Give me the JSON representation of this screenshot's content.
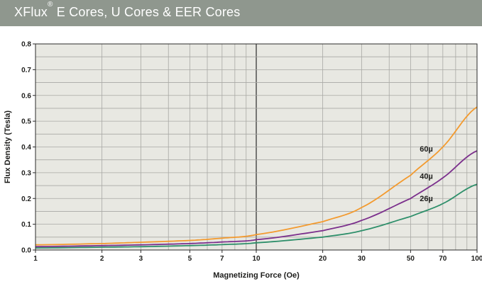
{
  "header": {
    "title_prefix": "XFlux",
    "title_mark": "®",
    "title_suffix": " E Cores, U Cores & EER Cores",
    "background": "#8f978e"
  },
  "chart_data": {
    "type": "line",
    "title": "XFlux® E Cores, U Cores & EER Cores",
    "xlabel": "Magnetizing Force (Oe)",
    "ylabel": "Flux Density (Tesla)",
    "x_scale": "log",
    "xlim": [
      1,
      100
    ],
    "ylim": [
      0,
      0.8
    ],
    "x_ticks": [
      1,
      2,
      3,
      5,
      7,
      10,
      20,
      30,
      50,
      70,
      100
    ],
    "x_tick_labels": [
      "1",
      "2",
      "3",
      "5",
      "7",
      "10",
      "20",
      "30",
      "50",
      "70",
      "100"
    ],
    "y_ticks": [
      0,
      0.1,
      0.2,
      0.3,
      0.4,
      0.5,
      0.6,
      0.7,
      0.8
    ],
    "y_tick_labels": [
      "0.0",
      "0.1",
      "0.2",
      "0.3",
      "0.4",
      "0.5",
      "0.6",
      "0.7",
      "0.8"
    ],
    "grid": true,
    "plot_background": "#e8e8e2",
    "series": [
      {
        "name": "60µ",
        "color": "#f39a2e",
        "x": [
          1,
          2,
          3,
          5,
          7,
          10,
          20,
          30,
          50,
          70,
          100
        ],
        "y": [
          0.02,
          0.025,
          0.03,
          0.037,
          0.046,
          0.06,
          0.11,
          0.165,
          0.29,
          0.4,
          0.555
        ]
      },
      {
        "name": "40µ",
        "color": "#7b2f8c",
        "x": [
          1,
          2,
          3,
          5,
          7,
          10,
          20,
          30,
          50,
          70,
          100
        ],
        "y": [
          0.013,
          0.017,
          0.02,
          0.025,
          0.031,
          0.04,
          0.075,
          0.115,
          0.2,
          0.28,
          0.385
        ]
      },
      {
        "name": "26µ",
        "color": "#2e8f6a",
        "x": [
          1,
          2,
          3,
          5,
          7,
          10,
          20,
          30,
          50,
          70,
          100
        ],
        "y": [
          0.008,
          0.011,
          0.013,
          0.017,
          0.021,
          0.028,
          0.05,
          0.075,
          0.13,
          0.18,
          0.255
        ]
      }
    ]
  }
}
